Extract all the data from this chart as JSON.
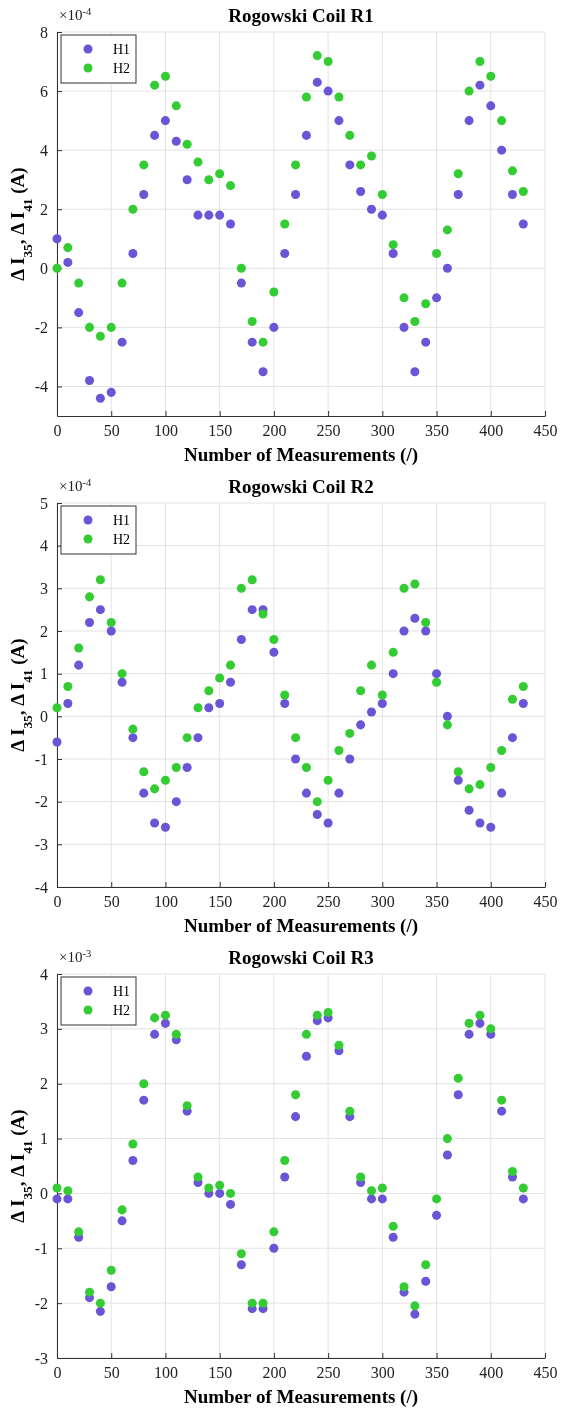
{
  "chart_data": [
    {
      "type": "scatter",
      "title": "Rogowski Coil R1",
      "xlabel": "Number of Measurements (/)",
      "ylabel": "Δ I$_{35}$, Δ I$_{41}$ (A)",
      "annotations": [
        "×10$^{-4}$"
      ],
      "x": [
        0,
        10,
        20,
        30,
        40,
        50,
        60,
        70,
        80,
        90,
        100,
        110,
        120,
        130,
        140,
        150,
        160,
        170,
        180,
        190,
        200,
        210,
        220,
        230,
        240,
        250,
        260,
        270,
        280,
        290,
        300,
        310,
        320,
        330,
        340,
        350,
        360,
        370,
        380,
        390,
        400,
        410,
        420,
        430
      ],
      "series": [
        {
          "name": "H1",
          "color": "#6a55d6",
          "values": [
            1.0,
            0.2,
            -1.5,
            -3.8,
            -4.4,
            -4.2,
            -2.5,
            0.5,
            2.5,
            4.5,
            5.0,
            4.3,
            3.0,
            1.8,
            1.8,
            1.8,
            1.5,
            -0.5,
            -2.5,
            -3.5,
            -2.0,
            0.5,
            2.5,
            4.5,
            6.3,
            6.0,
            5.0,
            3.5,
            2.6,
            2.0,
            1.8,
            0.5,
            -2.0,
            -3.5,
            -2.5,
            -1.0,
            0.0,
            2.5,
            5.0,
            6.2,
            5.5,
            4.0,
            2.5,
            1.5
          ]
        },
        {
          "name": "H2",
          "color": "#33cc33",
          "values": [
            0.0,
            0.7,
            -0.5,
            -2.0,
            -2.3,
            -2.0,
            -0.5,
            2.0,
            3.5,
            6.2,
            6.5,
            5.5,
            4.2,
            3.6,
            3.0,
            3.2,
            2.8,
            0.0,
            -1.8,
            -2.5,
            -0.8,
            1.5,
            3.5,
            5.8,
            7.2,
            7.0,
            5.8,
            4.5,
            3.5,
            3.8,
            2.5,
            0.8,
            -1.0,
            -1.8,
            -1.2,
            0.5,
            1.3,
            3.2,
            6.0,
            7.0,
            6.5,
            5.0,
            3.3,
            2.6
          ]
        }
      ],
      "xlim": [
        0,
        450
      ],
      "xticks": [
        0,
        50,
        100,
        150,
        200,
        250,
        300,
        350,
        400,
        450
      ],
      "ylim": [
        -5,
        8
      ],
      "yticks": [
        -4,
        -2,
        0,
        2,
        4,
        6,
        8
      ],
      "grid": true,
      "legend": "top left",
      "marker": "circle"
    },
    {
      "type": "scatter",
      "title": "Rogowski Coil R2",
      "xlabel": "Number of Measurements (/)",
      "ylabel": "Δ I$_{35}$, Δ I$_{41}$ (A)",
      "annotations": [
        "×10$^{-4}$"
      ],
      "x": [
        0,
        10,
        20,
        30,
        40,
        50,
        60,
        70,
        80,
        90,
        100,
        110,
        120,
        130,
        140,
        150,
        160,
        170,
        180,
        190,
        200,
        210,
        220,
        230,
        240,
        250,
        260,
        270,
        280,
        290,
        300,
        310,
        320,
        330,
        340,
        350,
        360,
        370,
        380,
        390,
        400,
        410,
        420,
        430
      ],
      "series": [
        {
          "name": "H1",
          "color": "#6a55d6",
          "values": [
            -0.6,
            0.3,
            1.2,
            2.2,
            2.5,
            2.0,
            0.8,
            -0.5,
            -1.8,
            -2.5,
            -2.6,
            -2.0,
            -1.2,
            -0.5,
            0.2,
            0.3,
            0.8,
            1.8,
            2.5,
            2.5,
            1.5,
            0.3,
            -1.0,
            -1.8,
            -2.3,
            -2.5,
            -1.8,
            -1.0,
            -0.2,
            0.1,
            0.3,
            1.0,
            2.0,
            2.3,
            2.0,
            1.0,
            0.0,
            -1.5,
            -2.2,
            -2.5,
            -2.6,
            -1.8,
            -0.5,
            0.3
          ]
        },
        {
          "name": "H2",
          "color": "#33cc33",
          "values": [
            0.2,
            0.7,
            1.6,
            2.8,
            3.2,
            2.2,
            1.0,
            -0.3,
            -1.3,
            -1.7,
            -1.5,
            -1.2,
            -0.5,
            0.2,
            0.6,
            0.9,
            1.2,
            3.0,
            3.2,
            2.4,
            1.8,
            0.5,
            -0.5,
            -1.2,
            -2.0,
            -1.5,
            -0.8,
            -0.4,
            0.6,
            1.2,
            0.5,
            1.5,
            3.0,
            3.1,
            2.2,
            0.8,
            -0.2,
            -1.3,
            -1.7,
            -1.6,
            -1.2,
            -0.8,
            0.4,
            0.7
          ]
        }
      ],
      "xlim": [
        0,
        450
      ],
      "xticks": [
        0,
        50,
        100,
        150,
        200,
        250,
        300,
        350,
        400,
        450
      ],
      "ylim": [
        -4,
        5
      ],
      "yticks": [
        -4,
        -3,
        -2,
        -1,
        0,
        1,
        2,
        3,
        4,
        5
      ],
      "grid": true,
      "legend": "top left",
      "marker": "circle"
    },
    {
      "type": "scatter",
      "title": "Rogowski Coil R3",
      "xlabel": "Number of Measurements (/)",
      "ylabel": "Δ I$_{35}$, Δ I$_{41}$ (A)",
      "annotations": [
        "×10$^{-3}$"
      ],
      "x": [
        0,
        10,
        20,
        30,
        40,
        50,
        60,
        70,
        80,
        90,
        100,
        110,
        120,
        130,
        140,
        150,
        160,
        170,
        180,
        190,
        200,
        210,
        220,
        230,
        240,
        250,
        260,
        270,
        280,
        290,
        300,
        310,
        320,
        330,
        340,
        350,
        360,
        370,
        380,
        390,
        400,
        410,
        420,
        430
      ],
      "series": [
        {
          "name": "H1",
          "color": "#6a55d6",
          "values": [
            -0.1,
            -0.1,
            -0.8,
            -1.9,
            -2.15,
            -1.7,
            -0.5,
            0.6,
            1.7,
            2.9,
            3.1,
            2.8,
            1.5,
            0.2,
            0.0,
            0.0,
            -0.2,
            -1.3,
            -2.1,
            -2.1,
            -1.0,
            0.3,
            1.4,
            2.5,
            3.15,
            3.2,
            2.6,
            1.4,
            0.2,
            -0.1,
            -0.1,
            -0.8,
            -1.8,
            -2.2,
            -1.6,
            -0.4,
            0.7,
            1.8,
            2.9,
            3.1,
            2.9,
            1.5,
            0.3,
            -0.1
          ]
        },
        {
          "name": "H2",
          "color": "#33cc33",
          "values": [
            0.1,
            0.05,
            -0.7,
            -1.8,
            -2.0,
            -1.4,
            -0.3,
            0.9,
            2.0,
            3.2,
            3.25,
            2.9,
            1.6,
            0.3,
            0.1,
            0.15,
            0.0,
            -1.1,
            -2.0,
            -2.0,
            -0.7,
            0.6,
            1.8,
            2.9,
            3.25,
            3.3,
            2.7,
            1.5,
            0.3,
            0.05,
            0.1,
            -0.6,
            -1.7,
            -2.05,
            -1.3,
            -0.1,
            1.0,
            2.1,
            3.1,
            3.25,
            3.0,
            1.7,
            0.4,
            0.1
          ]
        }
      ],
      "xlim": [
        0,
        450
      ],
      "xticks": [
        0,
        50,
        100,
        150,
        200,
        250,
        300,
        350,
        400,
        450
      ],
      "ylim": [
        -3,
        4
      ],
      "yticks": [
        -3,
        -2,
        -1,
        0,
        1,
        2,
        3,
        4
      ],
      "grid": true,
      "legend": "top left",
      "marker": "circle"
    }
  ]
}
